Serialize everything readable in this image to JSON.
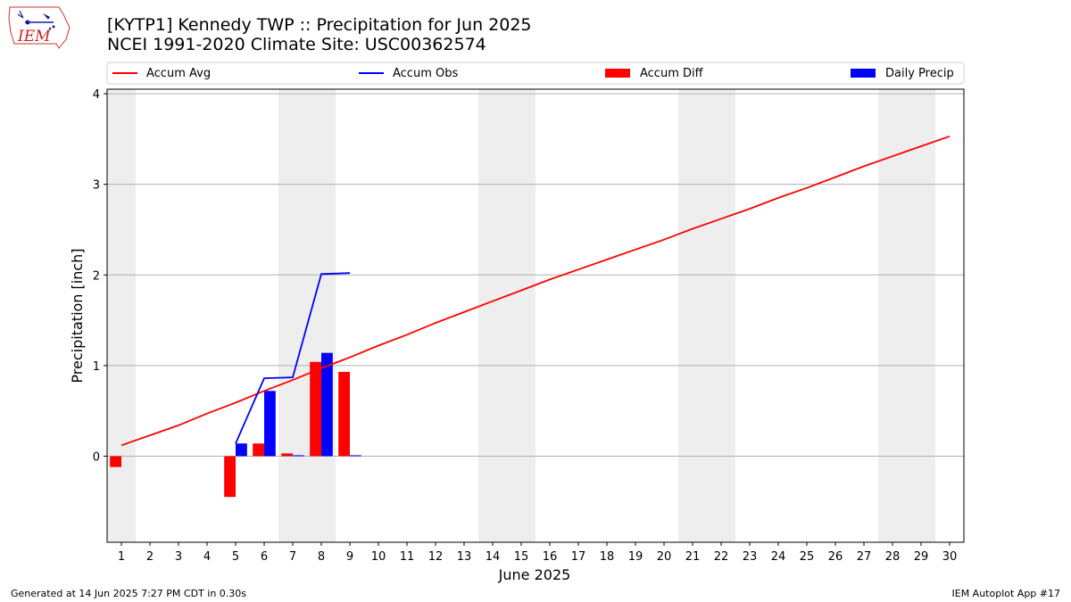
{
  "header": {
    "title_line1": "[KYTP1] Kennedy TWP :: Precipitation for Jun 2025",
    "title_line2": "NCEI 1991-2020 Climate Site: USC00362574",
    "logo_text": "IEM"
  },
  "footer": {
    "generated": "Generated at 14 Jun 2025 7:27 PM CDT in 0.30s",
    "app": "IEM Autoplot App #17"
  },
  "colors": {
    "avg": "#ff0000",
    "obs": "#0000ff",
    "diff": "#ff0000",
    "daily": "#0000ff",
    "weekend": "#eeeeee",
    "grid": "#b0b0b0"
  },
  "chart_data": {
    "type": "bar",
    "xlabel": "June 2025",
    "ylabel": "Precipitation [inch]",
    "xlim": [
      0.5,
      30.5
    ],
    "ylim": [
      -0.95,
      4.05
    ],
    "yticks": [
      0,
      1,
      2,
      3,
      4
    ],
    "xticks": [
      1,
      2,
      3,
      4,
      5,
      6,
      7,
      8,
      9,
      10,
      11,
      12,
      13,
      14,
      15,
      16,
      17,
      18,
      19,
      20,
      21,
      22,
      23,
      24,
      25,
      26,
      27,
      28,
      29,
      30
    ],
    "grid": "horizontal",
    "legend_position": "top",
    "weekend_days": [
      1,
      7,
      8,
      14,
      15,
      21,
      22,
      28,
      29
    ],
    "series": [
      {
        "name": "Accum Avg",
        "kind": "line",
        "x": [
          1,
          2,
          3,
          4,
          5,
          6,
          7,
          8,
          9,
          10,
          11,
          12,
          13,
          14,
          15,
          16,
          17,
          18,
          19,
          20,
          21,
          22,
          23,
          24,
          25,
          26,
          27,
          28,
          29,
          30
        ],
        "values": [
          0.12,
          0.23,
          0.34,
          0.47,
          0.59,
          0.72,
          0.84,
          0.97,
          1.09,
          1.22,
          1.34,
          1.47,
          1.59,
          1.71,
          1.83,
          1.95,
          2.06,
          2.17,
          2.28,
          2.39,
          2.51,
          2.62,
          2.73,
          2.85,
          2.96,
          3.08,
          3.2,
          3.31,
          3.42,
          3.53
        ]
      },
      {
        "name": "Accum Obs",
        "kind": "line",
        "x": [
          5,
          6,
          7,
          8,
          9
        ],
        "values": [
          0.14,
          0.86,
          0.87,
          2.01,
          2.02
        ]
      },
      {
        "name": "Accum Diff",
        "kind": "bar",
        "x": [
          1,
          5,
          6,
          7,
          8,
          9
        ],
        "values": [
          -0.12,
          -0.45,
          0.14,
          0.03,
          1.04,
          0.93
        ]
      },
      {
        "name": "Daily Precip",
        "kind": "bar",
        "x": [
          5,
          6,
          7,
          8,
          9
        ],
        "values": [
          0.14,
          0.72,
          0.01,
          1.14,
          0.01
        ]
      }
    ]
  }
}
